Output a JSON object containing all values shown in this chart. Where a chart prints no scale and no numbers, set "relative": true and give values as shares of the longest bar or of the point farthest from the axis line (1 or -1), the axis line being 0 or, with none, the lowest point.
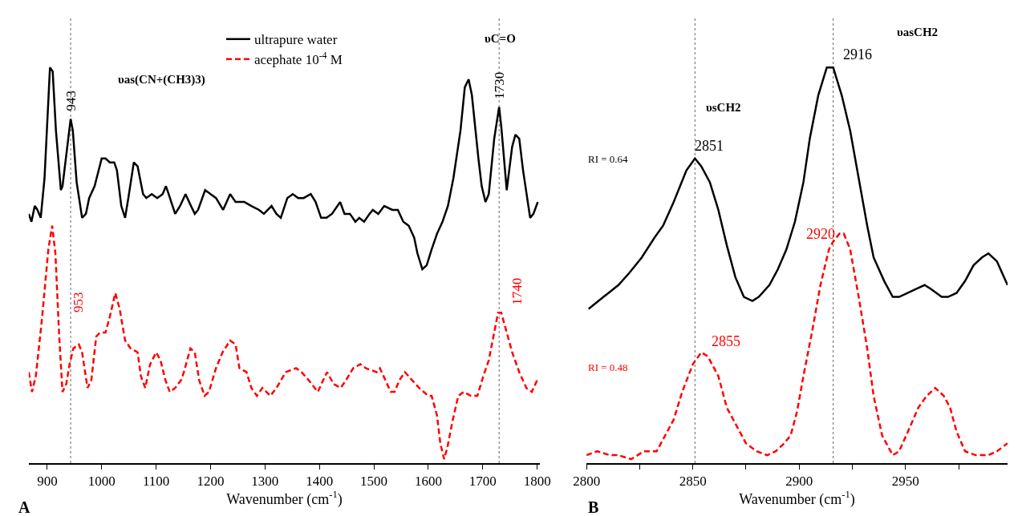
{
  "chart_data": [
    {
      "type": "line",
      "relative": true,
      "xlabel": "Wavenumber (cm$^{-1}$)",
      "xlim": [
        866,
        1805
      ],
      "xticks": [
        900,
        1000,
        1100,
        1200,
        1300,
        1400,
        1500,
        1600,
        1700,
        1800
      ],
      "tick_labels": "x",
      "legend": "top",
      "series": [
        {
          "name": "ultrapure water",
          "color": "#000000",
          "line_style": "solid",
          "x": [
            866,
            871,
            877,
            882,
            888,
            895,
            905,
            910,
            916,
            925,
            928,
            943,
            947,
            954,
            964,
            971,
            977,
            987,
            1000,
            1007,
            1015,
            1023,
            1028,
            1036,
            1043,
            1049,
            1059,
            1066,
            1076,
            1082,
            1092,
            1102,
            1112,
            1118,
            1123,
            1135,
            1144,
            1154,
            1164,
            1171,
            1177,
            1190,
            1200,
            1210,
            1223,
            1236,
            1246,
            1262,
            1275,
            1289,
            1298,
            1312,
            1321,
            1329,
            1341,
            1351,
            1361,
            1371,
            1384,
            1393,
            1403,
            1413,
            1423,
            1438,
            1446,
            1456,
            1466,
            1473,
            1482,
            1492,
            1498,
            1508,
            1519,
            1534,
            1544,
            1554,
            1564,
            1574,
            1580,
            1589,
            1597,
            1606,
            1616,
            1626,
            1636,
            1646,
            1659,
            1667,
            1674,
            1680,
            1692,
            1698,
            1705,
            1711,
            1721,
            1730,
            1734,
            1744,
            1754,
            1760,
            1767,
            1774,
            1787,
            1793,
            1801
          ],
          "values": [
            0.63,
            0.61,
            0.65,
            0.64,
            0.62,
            0.72,
            1.0,
            0.99,
            0.84,
            0.69,
            0.7,
            0.87,
            0.84,
            0.71,
            0.62,
            0.63,
            0.67,
            0.7,
            0.77,
            0.77,
            0.76,
            0.76,
            0.74,
            0.65,
            0.62,
            0.67,
            0.76,
            0.75,
            0.68,
            0.67,
            0.68,
            0.67,
            0.68,
            0.7,
            0.68,
            0.63,
            0.65,
            0.68,
            0.65,
            0.63,
            0.64,
            0.69,
            0.68,
            0.67,
            0.64,
            0.68,
            0.66,
            0.66,
            0.65,
            0.64,
            0.63,
            0.65,
            0.63,
            0.62,
            0.67,
            0.68,
            0.67,
            0.67,
            0.68,
            0.66,
            0.62,
            0.62,
            0.63,
            0.66,
            0.63,
            0.63,
            0.61,
            0.62,
            0.61,
            0.63,
            0.64,
            0.63,
            0.65,
            0.64,
            0.64,
            0.61,
            0.6,
            0.57,
            0.53,
            0.49,
            0.5,
            0.54,
            0.58,
            0.61,
            0.65,
            0.72,
            0.84,
            0.95,
            0.97,
            0.93,
            0.77,
            0.7,
            0.66,
            0.68,
            0.82,
            0.9,
            0.85,
            0.69,
            0.8,
            0.83,
            0.82,
            0.74,
            0.62,
            0.63,
            0.66
          ]
        },
        {
          "name": "acephate 10$^{-4}$ M",
          "color": "#ff0000",
          "line_style": "dashed",
          "x": [
            866,
            872,
            879,
            890,
            902,
            909,
            915,
            922,
            928,
            935,
            941,
            948,
            958,
            964,
            974,
            981,
            990,
            997,
            1007,
            1015,
            1025,
            1033,
            1043,
            1053,
            1066,
            1072,
            1080,
            1089,
            1100,
            1108,
            1117,
            1125,
            1135,
            1146,
            1151,
            1163,
            1171,
            1179,
            1189,
            1197,
            1210,
            1222,
            1236,
            1246,
            1253,
            1266,
            1275,
            1285,
            1295,
            1310,
            1321,
            1338,
            1357,
            1367,
            1380,
            1397,
            1407,
            1414,
            1426,
            1439,
            1449,
            1462,
            1475,
            1485,
            1505,
            1511,
            1521,
            1531,
            1538,
            1547,
            1557,
            1570,
            1583,
            1600,
            1606,
            1616,
            1622,
            1629,
            1635,
            1645,
            1655,
            1665,
            1678,
            1690,
            1701,
            1711,
            1721,
            1728,
            1734,
            1744,
            1754,
            1767,
            1780,
            1790,
            1800
          ],
          "values": [
            0.23,
            0.18,
            0.22,
            0.36,
            0.54,
            0.6,
            0.53,
            0.32,
            0.18,
            0.2,
            0.25,
            0.29,
            0.3,
            0.28,
            0.19,
            0.21,
            0.32,
            0.33,
            0.33,
            0.37,
            0.43,
            0.39,
            0.31,
            0.29,
            0.28,
            0.22,
            0.19,
            0.25,
            0.28,
            0.26,
            0.21,
            0.18,
            0.19,
            0.21,
            0.23,
            0.29,
            0.28,
            0.21,
            0.17,
            0.18,
            0.24,
            0.28,
            0.31,
            0.3,
            0.24,
            0.23,
            0.19,
            0.17,
            0.19,
            0.17,
            0.19,
            0.23,
            0.24,
            0.23,
            0.21,
            0.18,
            0.21,
            0.23,
            0.2,
            0.19,
            0.21,
            0.24,
            0.25,
            0.24,
            0.23,
            0.24,
            0.21,
            0.18,
            0.18,
            0.21,
            0.23,
            0.21,
            0.19,
            0.17,
            0.17,
            0.12,
            0.05,
            0.01,
            0.04,
            0.11,
            0.17,
            0.18,
            0.17,
            0.17,
            0.22,
            0.26,
            0.33,
            0.38,
            0.38,
            0.33,
            0.28,
            0.23,
            0.19,
            0.18,
            0.21
          ]
        }
      ],
      "ref_lines": [
        {
          "axis": "x",
          "value": 943,
          "color": "#666666",
          "line_style": "dotted"
        },
        {
          "axis": "x",
          "value": 1730,
          "color": "#666666",
          "line_style": "dotted"
        }
      ],
      "annotations": [
        {
          "text": "943",
          "x": 943,
          "y": 0.87
        },
        "υas(CN+(CH3)3)",
        {
          "text": "1730",
          "x": 1730,
          "y": 0.9
        },
        "υC=O",
        {
          "text": "953",
          "x": 958,
          "y": 0.3
        },
        {
          "text": "1740",
          "x": 1734,
          "y": 0.38
        },
        "A"
      ]
    },
    {
      "type": "line",
      "relative": true,
      "xlabel": "Wavenumber (cm$^{-1}$)",
      "xlim": [
        2800,
        2998
      ],
      "xticks": [
        2800,
        {
          "value": 2825,
          "label": null
        },
        2850,
        {
          "value": 2875,
          "label": null
        },
        2900,
        {
          "value": 2925,
          "label": null
        },
        2950,
        {
          "value": 2975,
          "label": null
        }
      ],
      "tick_labels": "x",
      "series": [
        {
          "color": "#000000",
          "line_style": "solid",
          "x": [
            2801,
            2808,
            2815,
            2820,
            2826,
            2832,
            2836,
            2841,
            2847,
            2851,
            2854,
            2858,
            2862,
            2866,
            2870,
            2874,
            2878,
            2881,
            2886,
            2890,
            2894,
            2898,
            2902,
            2905,
            2909,
            2913,
            2916,
            2920,
            2924,
            2928,
            2932,
            2935,
            2940,
            2944,
            2947,
            2951,
            2955,
            2959,
            2962,
            2967,
            2970,
            2974,
            2978,
            2982,
            2986,
            2989,
            2993,
            2998
          ],
          "values": [
            0.39,
            0.42,
            0.45,
            0.48,
            0.52,
            0.57,
            0.6,
            0.66,
            0.74,
            0.77,
            0.75,
            0.71,
            0.64,
            0.55,
            0.47,
            0.42,
            0.41,
            0.42,
            0.45,
            0.49,
            0.54,
            0.61,
            0.71,
            0.82,
            0.93,
            1.0,
            1.0,
            0.93,
            0.84,
            0.72,
            0.6,
            0.52,
            0.46,
            0.42,
            0.42,
            0.43,
            0.44,
            0.45,
            0.44,
            0.42,
            0.42,
            0.43,
            0.46,
            0.5,
            0.52,
            0.53,
            0.51,
            0.45
          ]
        },
        {
          "color": "#ff0000",
          "line_style": "dashed",
          "x": [
            2800,
            2805,
            2811,
            2815,
            2821,
            2827,
            2833,
            2836,
            2841,
            2845,
            2850,
            2854,
            2857,
            2862,
            2866,
            2871,
            2875,
            2880,
            2885,
            2889,
            2893,
            2896,
            2899,
            2902,
            2906,
            2910,
            2914,
            2916,
            2919,
            2921,
            2924,
            2928,
            2932,
            2935,
            2939,
            2944,
            2947,
            2952,
            2956,
            2960,
            2964,
            2968,
            2971,
            2974,
            2978,
            2983,
            2989,
            2993,
            2998
          ],
          "values": [
            0.02,
            0.03,
            0.02,
            0.02,
            0.01,
            0.03,
            0.03,
            0.06,
            0.11,
            0.18,
            0.25,
            0.28,
            0.27,
            0.22,
            0.14,
            0.09,
            0.05,
            0.03,
            0.02,
            0.03,
            0.05,
            0.07,
            0.13,
            0.22,
            0.33,
            0.45,
            0.54,
            0.56,
            0.58,
            0.58,
            0.54,
            0.42,
            0.29,
            0.17,
            0.07,
            0.02,
            0.03,
            0.09,
            0.14,
            0.17,
            0.19,
            0.17,
            0.14,
            0.08,
            0.03,
            0.02,
            0.02,
            0.03,
            0.05
          ]
        }
      ],
      "ref_lines": [
        {
          "axis": "x",
          "value": 2851,
          "color": "#666666",
          "line_style": "dotted"
        },
        {
          "axis": "x",
          "value": 2916,
          "color": "#666666",
          "line_style": "dotted"
        }
      ],
      "annotations": [
        {
          "text": "2851",
          "x": 2851,
          "y": 0.77
        },
        "υsCH2",
        {
          "text": "2916",
          "x": 2916,
          "y": 1.0
        },
        "υasCH2",
        {
          "text": "2920",
          "x": 2919,
          "y": 0.58
        },
        {
          "text": "2855",
          "x": 2855,
          "y": 0.28
        },
        "RI = 0.64",
        "RI = 0.48",
        "B"
      ]
    }
  ]
}
